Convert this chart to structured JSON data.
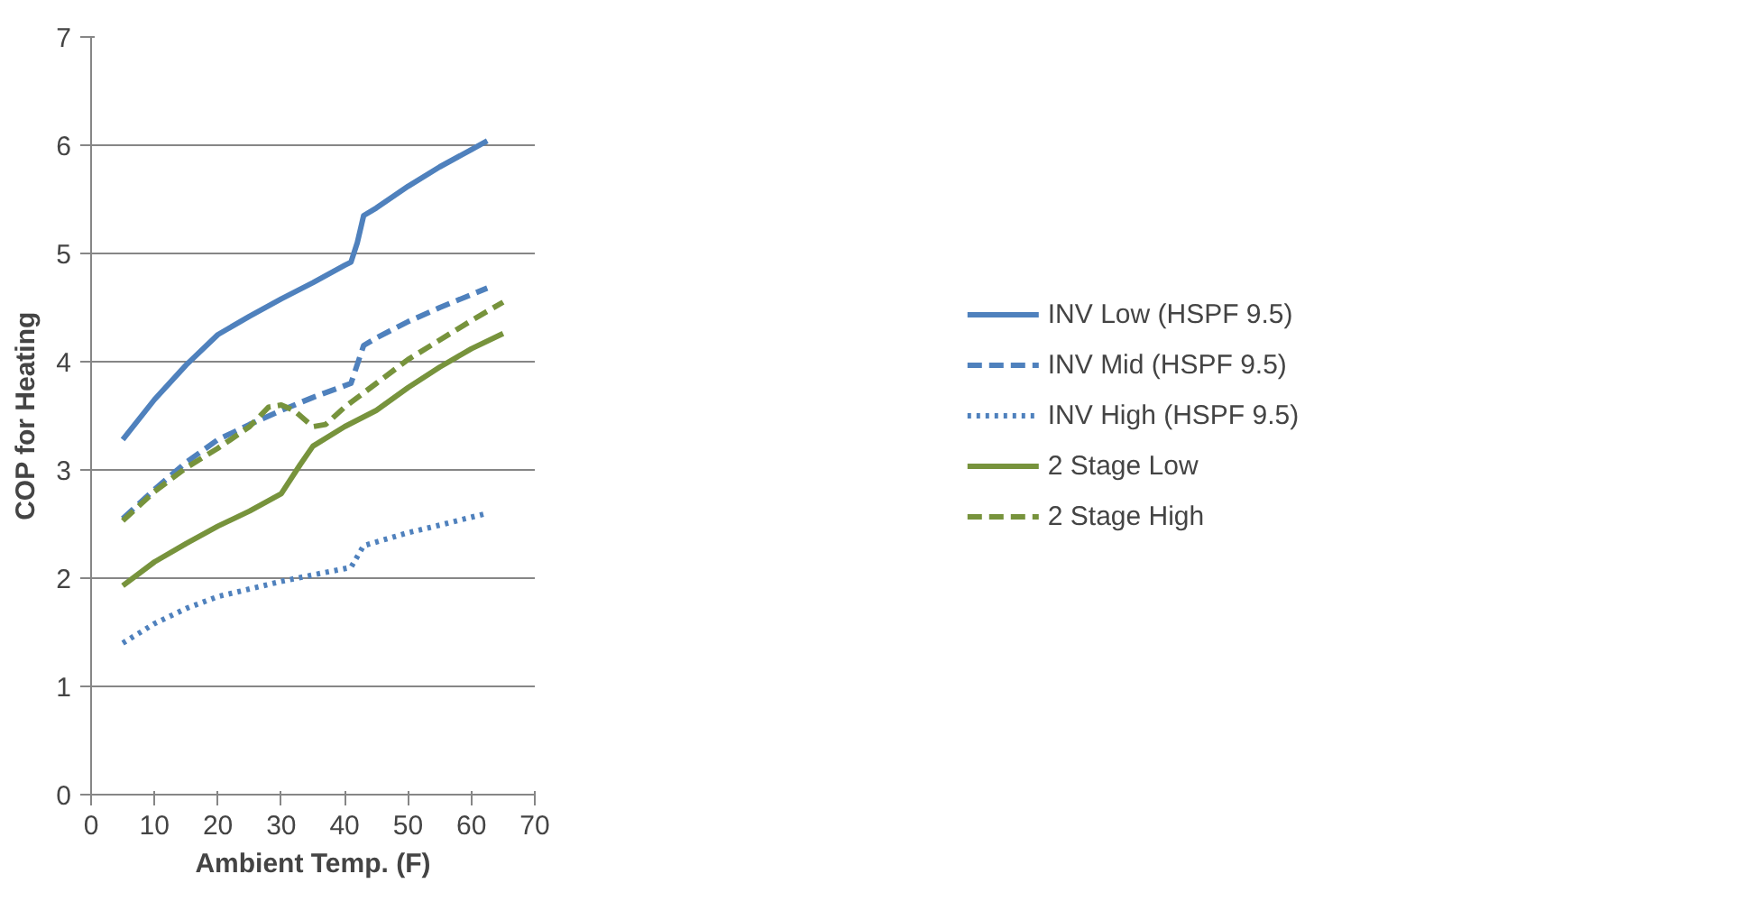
{
  "chart_data": {
    "type": "line",
    "xlabel": "Ambient Temp. (F)",
    "ylabel": "COP for Heating",
    "xlim": [
      0,
      70
    ],
    "ylim": [
      0,
      7
    ],
    "xticks": [
      0,
      10,
      20,
      30,
      40,
      50,
      60,
      70
    ],
    "yticks": [
      0,
      1,
      2,
      3,
      4,
      5,
      6,
      7
    ],
    "grid": "y",
    "legend": "right",
    "marker": "none",
    "series": [
      {
        "name": "INV Low (HSPF 9.5)",
        "color": "#4f81bd",
        "line_style": "solid",
        "x": [
          5,
          10,
          15,
          20,
          25,
          30,
          35,
          40,
          41,
          42,
          43,
          45,
          50,
          55,
          60,
          62.5
        ],
        "values": [
          3.28,
          3.65,
          3.97,
          4.25,
          4.42,
          4.58,
          4.73,
          4.89,
          4.92,
          5.1,
          5.35,
          5.42,
          5.62,
          5.8,
          5.96,
          6.04
        ]
      },
      {
        "name": "INV Mid (HSPF 9.5)",
        "color": "#4f81bd",
        "line_style": "dashed",
        "x": [
          5,
          10,
          15,
          20,
          25,
          30,
          35,
          41,
          43,
          45,
          50,
          55,
          62.5
        ],
        "values": [
          2.55,
          2.82,
          3.07,
          3.28,
          3.42,
          3.55,
          3.67,
          3.8,
          4.15,
          4.22,
          4.37,
          4.5,
          4.68
        ]
      },
      {
        "name": "INV High (HSPF 9.5)",
        "color": "#4f81bd",
        "line_style": "dotted",
        "x": [
          5,
          10,
          15,
          20,
          25,
          30,
          35,
          41,
          43,
          50,
          55,
          62.5
        ],
        "values": [
          1.4,
          1.58,
          1.72,
          1.83,
          1.9,
          1.97,
          2.03,
          2.1,
          2.3,
          2.42,
          2.49,
          2.6
        ]
      },
      {
        "name": "2 Stage Low",
        "color": "#77933c",
        "line_style": "solid",
        "x": [
          5,
          10,
          15,
          20,
          25,
          30,
          33,
          35,
          40,
          45,
          50,
          55,
          60,
          65
        ],
        "values": [
          1.93,
          2.15,
          2.32,
          2.48,
          2.62,
          2.78,
          3.05,
          3.22,
          3.4,
          3.55,
          3.76,
          3.95,
          4.12,
          4.26
        ]
      },
      {
        "name": "2 Stage High",
        "color": "#77933c",
        "line_style": "dashed",
        "x": [
          5,
          10,
          15,
          20,
          25,
          28,
          30,
          32,
          35,
          37,
          40,
          45,
          50,
          55,
          60,
          65
        ],
        "values": [
          2.53,
          2.8,
          3.02,
          3.2,
          3.4,
          3.58,
          3.6,
          3.55,
          3.4,
          3.42,
          3.58,
          3.8,
          4.02,
          4.2,
          4.38,
          4.55
        ]
      }
    ]
  }
}
